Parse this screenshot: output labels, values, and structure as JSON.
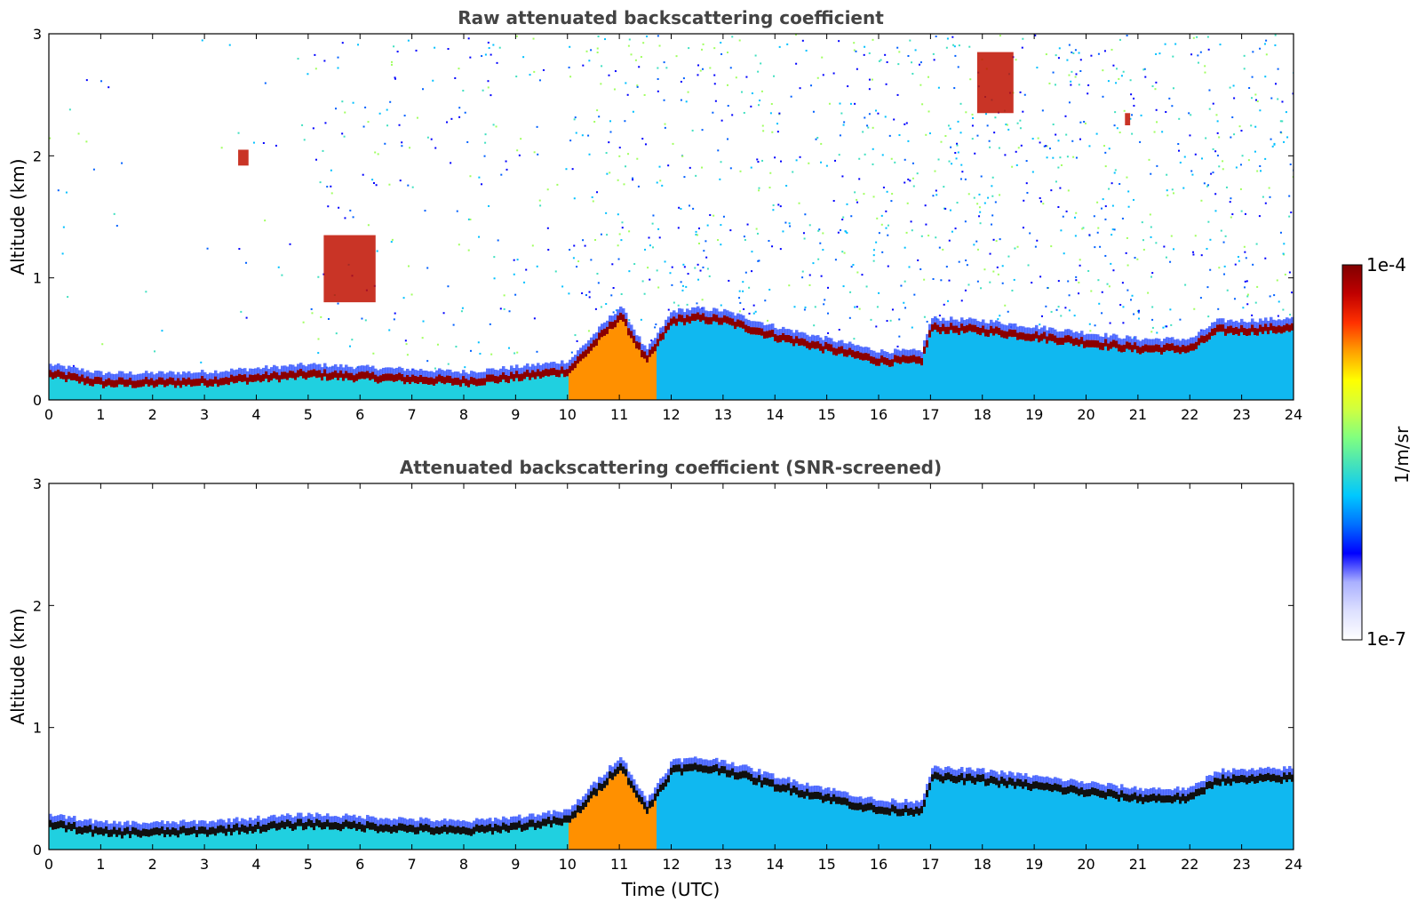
{
  "chart_data": [
    {
      "type": "heatmap",
      "title": "Raw attenuated backscattering coefficient",
      "xlabel": "",
      "ylabel": "Altitude (km)",
      "xlim": [
        0,
        24
      ],
      "ylim": [
        0,
        3
      ],
      "xticks": [
        0,
        1,
        2,
        3,
        4,
        5,
        6,
        7,
        8,
        9,
        10,
        11,
        12,
        13,
        14,
        15,
        16,
        17,
        18,
        19,
        20,
        21,
        22,
        23,
        24
      ],
      "yticks": [
        0,
        1,
        2,
        3
      ],
      "boundary_layer_top_km": [
        [
          0,
          0.24
        ],
        [
          1,
          0.17
        ],
        [
          2,
          0.17
        ],
        [
          3,
          0.18
        ],
        [
          4,
          0.21
        ],
        [
          5,
          0.24
        ],
        [
          6,
          0.22
        ],
        [
          7,
          0.2
        ],
        [
          8,
          0.18
        ],
        [
          9,
          0.22
        ],
        [
          10,
          0.27
        ],
        [
          11,
          0.72
        ],
        [
          11.5,
          0.35
        ],
        [
          12,
          0.68
        ],
        [
          12.5,
          0.7
        ],
        [
          13,
          0.68
        ],
        [
          14,
          0.55
        ],
        [
          15,
          0.45
        ],
        [
          16,
          0.35
        ],
        [
          16.8,
          0.35
        ],
        [
          17,
          0.62
        ],
        [
          18,
          0.6
        ],
        [
          21,
          0.45
        ],
        [
          22,
          0.45
        ],
        [
          22.5,
          0.6
        ],
        [
          23,
          0.6
        ],
        [
          24,
          0.62
        ]
      ],
      "cloud_patches_km": [
        {
          "x": [
            3.65,
            3.85
          ],
          "y": [
            1.92,
            2.05
          ]
        },
        {
          "x": [
            17.9,
            18.6
          ],
          "y": [
            2.35,
            2.85
          ]
        },
        {
          "x": [
            20.75,
            20.85
          ],
          "y": [
            2.25,
            2.35
          ]
        },
        {
          "x": [
            5.3,
            6.3
          ],
          "y": [
            0.8,
            1.35
          ]
        }
      ]
    },
    {
      "type": "heatmap",
      "title": "Attenuated backscattering coefficient (SNR-screened)",
      "xlabel": "Time (UTC)",
      "ylabel": "Altitude (km)",
      "xlim": [
        0,
        24
      ],
      "ylim": [
        0,
        3
      ],
      "xticks": [
        0,
        1,
        2,
        3,
        4,
        5,
        6,
        7,
        8,
        9,
        10,
        11,
        12,
        13,
        14,
        15,
        16,
        17,
        18,
        19,
        20,
        21,
        22,
        23,
        24
      ],
      "yticks": [
        0,
        1,
        2,
        3
      ],
      "boundary_layer_top_km": [
        [
          0,
          0.24
        ],
        [
          1,
          0.17
        ],
        [
          2,
          0.17
        ],
        [
          3,
          0.18
        ],
        [
          4,
          0.21
        ],
        [
          5,
          0.24
        ],
        [
          6,
          0.22
        ],
        [
          7,
          0.2
        ],
        [
          8,
          0.18
        ],
        [
          9,
          0.22
        ],
        [
          10,
          0.27
        ],
        [
          11,
          0.72
        ],
        [
          11.5,
          0.35
        ],
        [
          12,
          0.68
        ],
        [
          12.5,
          0.7
        ],
        [
          13,
          0.68
        ],
        [
          14,
          0.55
        ],
        [
          15,
          0.45
        ],
        [
          16,
          0.35
        ],
        [
          16.8,
          0.35
        ],
        [
          17,
          0.62
        ],
        [
          18,
          0.6
        ],
        [
          21,
          0.45
        ],
        [
          22,
          0.45
        ],
        [
          22.5,
          0.6
        ],
        [
          23,
          0.6
        ],
        [
          24,
          0.62
        ]
      ]
    }
  ],
  "colorbar": {
    "label": "1/m/sr",
    "max_label": "1e-4",
    "min_label": "1e-7",
    "colormap": [
      "#ffffff",
      "#dde0ff",
      "#aab0ff",
      "#0000ff",
      "#0070ff",
      "#00c8ff",
      "#40e0c0",
      "#80ff80",
      "#d0ff40",
      "#ffff00",
      "#ffa000",
      "#ff3000",
      "#c00000",
      "#800000"
    ]
  }
}
